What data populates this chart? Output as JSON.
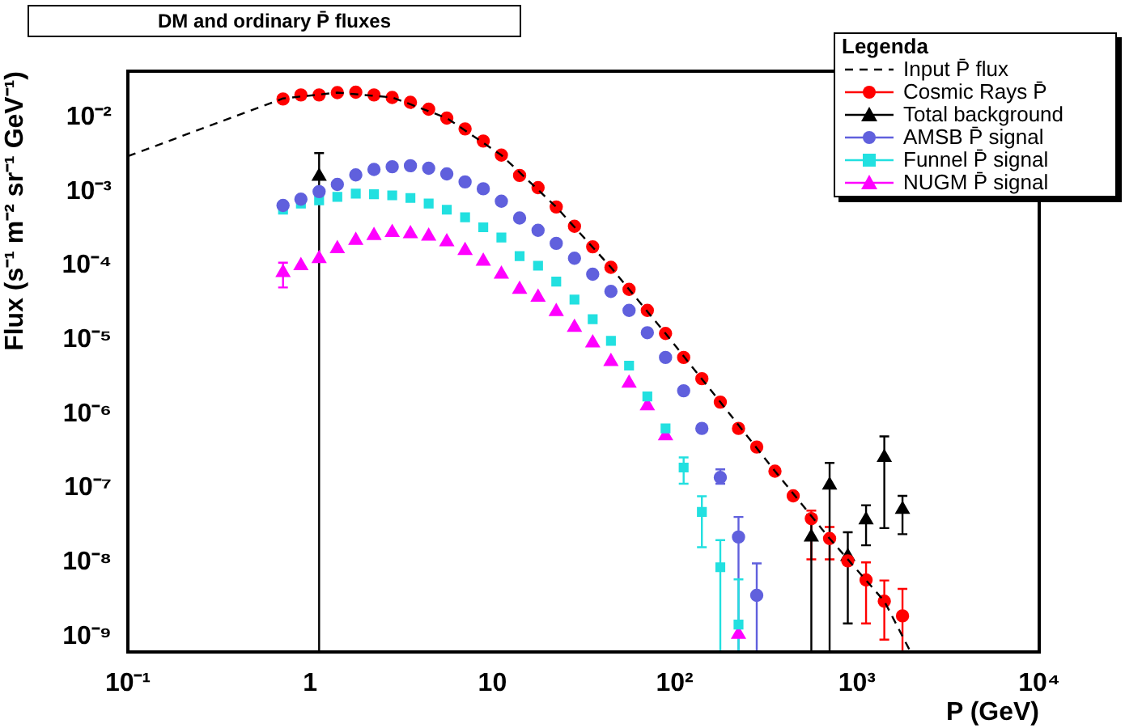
{
  "chart_data": {
    "type": "scatter",
    "title": "DM and ordinary P̄ fluxes",
    "xlabel": "P (GeV)",
    "ylabel": "Flux (s⁻¹ m⁻² sr⁻¹ GeV⁻¹)",
    "legend_title": "Legenda",
    "legend": "top right",
    "grid": false,
    "log": "xy",
    "xlim": [
      0.1,
      10000
    ],
    "ylim": [
      6.2e-10,
      0.042
    ],
    "xticks": [
      {
        "value": 0.1,
        "label": "10⁻¹"
      },
      1,
      10,
      {
        "value": 100,
        "label": "10²"
      },
      {
        "value": 1000,
        "label": "10³"
      },
      {
        "value": 10000,
        "label": "10⁴"
      }
    ],
    "yticks": [
      {
        "value": 1e-09,
        "label": "10⁻⁹"
      },
      {
        "value": 1e-08,
        "label": "10⁻⁸"
      },
      {
        "value": 1e-07,
        "label": "10⁻⁷"
      },
      {
        "value": 1e-06,
        "label": "10⁻⁶"
      },
      {
        "value": 1e-05,
        "label": "10⁻⁵"
      },
      {
        "value": 0.0001,
        "label": "10⁻⁴"
      },
      {
        "value": 0.001,
        "label": "10⁻³"
      },
      {
        "value": 0.01,
        "label": "10⁻²"
      }
    ],
    "x": [
      0.71,
      0.89,
      1.12,
      1.41,
      1.78,
      2.24,
      2.82,
      3.55,
      4.47,
      5.62,
      7.08,
      8.91,
      11.2,
      14.1,
      17.8,
      22.4,
      28.2,
      35.5,
      44.7,
      56.2,
      70.8,
      89.1,
      112,
      141,
      178,
      224,
      282,
      355,
      447,
      562,
      708,
      891,
      1122,
      1413,
      1778
    ],
    "series": [
      {
        "name": "Input P̄ flux",
        "type": "line",
        "line_style": "dashed",
        "marker": "none",
        "color": "#000000",
        "x": [
          0.1,
          0.71,
          1.41,
          2.82,
          5.62,
          11.2,
          22.4,
          44.7,
          89.1,
          178,
          355,
          708,
          1413,
          1970
        ],
        "values": [
          0.003,
          0.018,
          0.0216,
          0.0186,
          0.0098,
          0.0031,
          0.00062,
          9.5e-05,
          1.22e-05,
          1.45e-06,
          1.7e-07,
          2.1e-08,
          3e-09,
          6.2e-10
        ]
      },
      {
        "name": "Cosmic Rays P̄",
        "marker": "circle",
        "color": "#ff0000",
        "values": [
          0.0177,
          0.0201,
          0.0201,
          0.0216,
          0.0219,
          0.0201,
          0.0186,
          0.016,
          0.0129,
          0.0098,
          0.007,
          0.0048,
          0.0031,
          0.00165,
          0.00113,
          0.00062,
          0.00034,
          0.00018,
          9.5e-05,
          4.8e-05,
          2.5e-05,
          1.22e-05,
          5.8e-06,
          3e-06,
          1.45e-06,
          6.4e-07,
          3.6e-07,
          1.7e-07,
          7.9e-08,
          3.9e-08,
          2.1e-08,
          1.05e-08,
          5.8e-09,
          3e-09,
          1.9e-09
        ],
        "errors": [
          null,
          null,
          null,
          null,
          null,
          null,
          null,
          null,
          null,
          null,
          null,
          null,
          null,
          null,
          null,
          null,
          null,
          null,
          null,
          null,
          null,
          null,
          null,
          null,
          null,
          null,
          null,
          null,
          null,
          [
            1.1e-08,
            5e-08
          ],
          [
            1.1e-08,
            3e-08
          ],
          null,
          [
            1.5e-09,
            1e-08
          ],
          [
            9.1e-10,
            5.7e-09
          ],
          [
            6.2e-10,
            4.4e-09
          ]
        ]
      },
      {
        "name": "Total background",
        "marker": "triangle",
        "color": "#000000",
        "x": [
          1.12,
          562,
          708,
          891,
          1122,
          1413,
          1778
        ],
        "values": [
          0.0016,
          2.2e-08,
          1.1e-07,
          1.2e-08,
          3.75e-08,
          2.6e-07,
          5.2e-08
        ],
        "errors": [
          [
            6.2e-10,
            0.0033
          ],
          [
            6.2e-10,
            4.4e-08
          ],
          [
            6.2e-10,
            2.2e-07
          ],
          [
            1.5e-09,
            2.55e-08
          ],
          [
            1.7e-08,
            5.9e-08
          ],
          [
            2.9e-08,
            5e-07
          ],
          [
            2.4e-08,
            7.9e-08
          ]
        ]
      },
      {
        "name": "AMSB P̄ signal",
        "marker": "circle",
        "color": "#6060dd",
        "x": [
          0.71,
          0.89,
          1.12,
          1.41,
          1.78,
          2.24,
          2.82,
          3.55,
          4.47,
          5.62,
          7.08,
          8.91,
          11.2,
          14.1,
          17.8,
          22.4,
          28.2,
          35.5,
          44.7,
          56.2,
          70.8,
          89.1,
          112,
          141,
          178,
          224,
          282
        ],
        "values": [
          0.00065,
          0.00079,
          0.001,
          0.00125,
          0.00168,
          0.00199,
          0.00216,
          0.00223,
          0.00206,
          0.00173,
          0.00135,
          0.00109,
          0.00074,
          0.00044,
          0.0003,
          0.0002,
          0.000126,
          7.7e-05,
          4.5e-05,
          2.5e-05,
          1.25e-05,
          5.8e-06,
          2.06e-06,
          6.4e-07,
          1.4e-07,
          2.2e-08,
          3.6e-09
        ],
        "errors": [
          null,
          null,
          null,
          null,
          null,
          null,
          null,
          null,
          null,
          null,
          null,
          null,
          null,
          null,
          null,
          null,
          null,
          null,
          null,
          null,
          null,
          null,
          null,
          null,
          [
            1.15e-07,
            1.8e-07
          ],
          [
            6.2e-10,
            4.1e-08
          ],
          [
            6.2e-10,
            9.7e-09
          ]
        ]
      },
      {
        "name": "Funnel P̄ signal",
        "marker": "square",
        "color": "#22e0e0",
        "x": [
          0.71,
          0.89,
          1.12,
          1.41,
          1.78,
          2.24,
          2.82,
          3.55,
          4.47,
          5.62,
          7.08,
          8.91,
          11.2,
          14.1,
          17.8,
          22.4,
          28.2,
          35.5,
          44.7,
          56.2,
          70.8,
          89.1,
          112,
          141,
          178,
          224
        ],
        "values": [
          0.00057,
          0.00069,
          0.00076,
          0.00085,
          0.00094,
          0.00092,
          0.00089,
          0.00082,
          0.00069,
          0.00057,
          0.00045,
          0.00033,
          0.00024,
          0.000135,
          0.0001,
          6.1e-05,
          3.5e-05,
          1.9e-05,
          9.7e-06,
          4.5e-06,
          1.73e-06,
          6.4e-07,
          1.9e-07,
          4.8e-08,
          8.6e-09,
          1.45e-09
        ],
        "errors": [
          null,
          null,
          null,
          null,
          null,
          null,
          null,
          null,
          null,
          null,
          null,
          null,
          null,
          null,
          null,
          null,
          null,
          null,
          null,
          null,
          null,
          null,
          [
            1.15e-07,
            2.6e-07
          ],
          [
            1.6e-08,
            7.8e-08
          ],
          [
            6.2e-10,
            2e-08
          ],
          [
            6.2e-10,
            5.9e-09
          ]
        ]
      },
      {
        "name": "NUGM P̄ signal",
        "marker": "triangle",
        "color": "#ff00ff",
        "x": [
          0.71,
          0.89,
          1.12,
          1.41,
          1.78,
          2.24,
          2.82,
          3.55,
          4.47,
          5.62,
          7.08,
          8.91,
          11.2,
          14.1,
          17.8,
          22.4,
          28.2,
          35.5,
          44.7,
          56.2,
          70.8,
          89.1,
          112,
          141,
          178,
          224
        ],
        "values": [
          8.1e-05,
          0.0001,
          0.000125,
          0.00017,
          0.00022,
          0.000255,
          0.00028,
          0.00027,
          0.00025,
          0.00021,
          0.00016,
          0.000115,
          7.7e-05,
          4.8e-05,
          3.75e-05,
          2.4e-05,
          1.47e-05,
          9.1e-06,
          5.1e-06,
          2.6e-06,
          1.29e-06,
          5.1e-07,
          null,
          null,
          null,
          1.07e-09
        ],
        "errors": [
          [
            5.1e-05,
            0.00011
          ],
          null,
          null,
          null,
          null,
          null,
          null,
          null,
          null,
          null,
          null,
          null,
          null,
          null,
          null,
          null,
          null,
          null,
          null,
          null,
          null,
          null,
          null,
          null,
          null,
          null
        ]
      }
    ]
  }
}
